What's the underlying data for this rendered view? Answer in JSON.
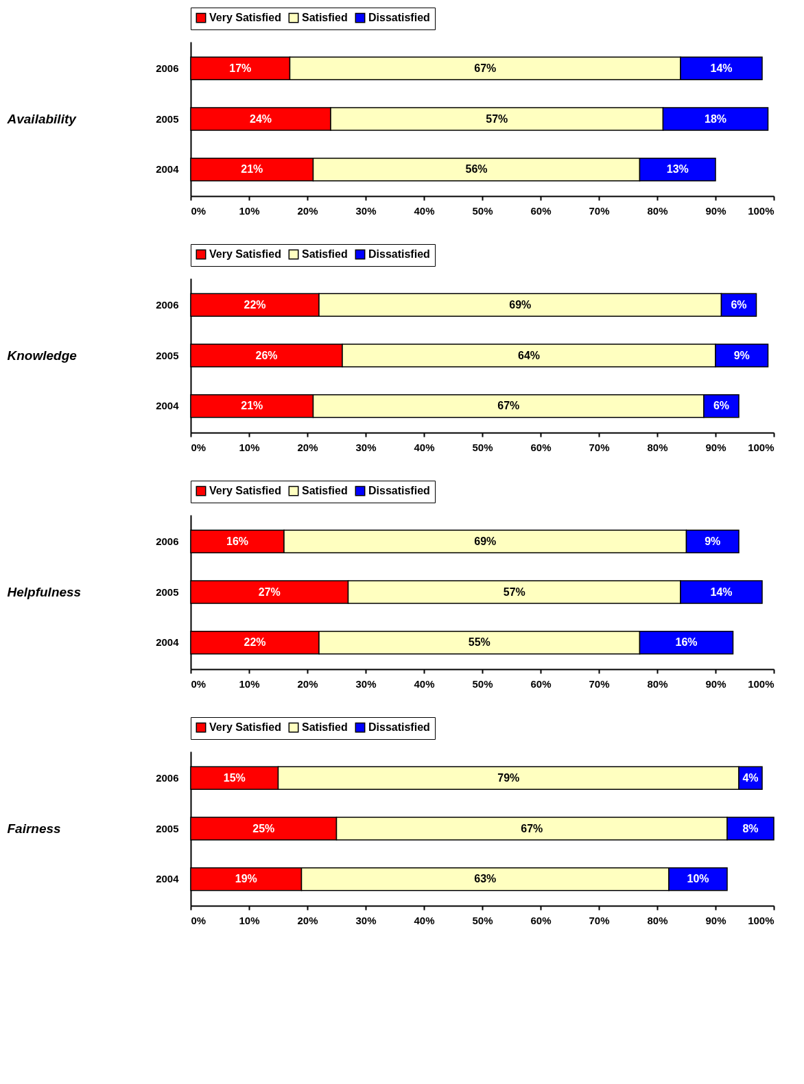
{
  "chart_data": [
    {
      "type": "bar",
      "orientation": "horizontal",
      "stacked": true,
      "ylabel": "Availability",
      "categories": [
        "2006",
        "2005",
        "2004"
      ],
      "legend": "top",
      "grid": false,
      "xlim": [
        0,
        100
      ],
      "xticks": [
        {
          "value": 0,
          "label": "0%"
        },
        {
          "value": 10,
          "label": "10%"
        },
        {
          "value": 20,
          "label": "20%"
        },
        {
          "value": 30,
          "label": "30%"
        },
        {
          "value": 40,
          "label": "40%"
        },
        {
          "value": 50,
          "label": "50%"
        },
        {
          "value": 60,
          "label": "60%"
        },
        {
          "value": 70,
          "label": "70%"
        },
        {
          "value": 80,
          "label": "80%"
        },
        {
          "value": 90,
          "label": "90%"
        },
        {
          "value": 100,
          "label": "100%"
        }
      ],
      "series": [
        {
          "name": "Very Satisfied",
          "color": "#ff0000",
          "values": [
            17,
            24,
            21
          ],
          "value_labels": [
            "17%",
            "24%",
            "21%"
          ]
        },
        {
          "name": "Satisfied",
          "color": "#ffffc0",
          "values": [
            67,
            57,
            56
          ],
          "value_labels": [
            "67%",
            "57%",
            "56%"
          ]
        },
        {
          "name": "Dissatisfied",
          "color": "#0000ff",
          "values": [
            14,
            18,
            13
          ],
          "value_labels": [
            "14%",
            "18%",
            "13%"
          ]
        }
      ]
    },
    {
      "type": "bar",
      "orientation": "horizontal",
      "stacked": true,
      "ylabel": "Knowledge",
      "categories": [
        "2006",
        "2005",
        "2004"
      ],
      "legend": "top",
      "grid": false,
      "xlim": [
        0,
        100
      ],
      "xticks": [
        {
          "value": 0,
          "label": "0%"
        },
        {
          "value": 10,
          "label": "10%"
        },
        {
          "value": 20,
          "label": "20%"
        },
        {
          "value": 30,
          "label": "30%"
        },
        {
          "value": 40,
          "label": "40%"
        },
        {
          "value": 50,
          "label": "50%"
        },
        {
          "value": 60,
          "label": "60%"
        },
        {
          "value": 70,
          "label": "70%"
        },
        {
          "value": 80,
          "label": "80%"
        },
        {
          "value": 90,
          "label": "90%"
        },
        {
          "value": 100,
          "label": "100%"
        }
      ],
      "series": [
        {
          "name": "Very Satisfied",
          "color": "#ff0000",
          "values": [
            22,
            26,
            21
          ],
          "value_labels": [
            "22%",
            "26%",
            "21%"
          ]
        },
        {
          "name": "Satisfied",
          "color": "#ffffc0",
          "values": [
            69,
            64,
            67
          ],
          "value_labels": [
            "69%",
            "64%",
            "67%"
          ]
        },
        {
          "name": "Dissatisfied",
          "color": "#0000ff",
          "values": [
            6,
            9,
            6
          ],
          "value_labels": [
            "6%",
            "9%",
            "6%"
          ]
        }
      ]
    },
    {
      "type": "bar",
      "orientation": "horizontal",
      "stacked": true,
      "ylabel": "Helpfulness",
      "categories": [
        "2006",
        "2005",
        "2004"
      ],
      "legend": "top",
      "grid": false,
      "xlim": [
        0,
        100
      ],
      "xticks": [
        {
          "value": 0,
          "label": "0%"
        },
        {
          "value": 10,
          "label": "10%"
        },
        {
          "value": 20,
          "label": "20%"
        },
        {
          "value": 30,
          "label": "30%"
        },
        {
          "value": 40,
          "label": "40%"
        },
        {
          "value": 50,
          "label": "50%"
        },
        {
          "value": 60,
          "label": "60%"
        },
        {
          "value": 70,
          "label": "70%"
        },
        {
          "value": 80,
          "label": "80%"
        },
        {
          "value": 90,
          "label": "90%"
        },
        {
          "value": 100,
          "label": "100%"
        }
      ],
      "series": [
        {
          "name": "Very Satisfied",
          "color": "#ff0000",
          "values": [
            16,
            27,
            22
          ],
          "value_labels": [
            "16%",
            "27%",
            "22%"
          ]
        },
        {
          "name": "Satisfied",
          "color": "#ffffc0",
          "values": [
            69,
            57,
            55
          ],
          "value_labels": [
            "69%",
            "57%",
            "55%"
          ]
        },
        {
          "name": "Dissatisfied",
          "color": "#0000ff",
          "values": [
            9,
            14,
            16
          ],
          "value_labels": [
            "9%",
            "14%",
            "16%"
          ]
        }
      ]
    },
    {
      "type": "bar",
      "orientation": "horizontal",
      "stacked": true,
      "ylabel": "Fairness",
      "categories": [
        "2006",
        "2005",
        "2004"
      ],
      "legend": "top",
      "grid": false,
      "xlim": [
        0,
        100
      ],
      "xticks": [
        {
          "value": 0,
          "label": "0%"
        },
        {
          "value": 10,
          "label": "10%"
        },
        {
          "value": 20,
          "label": "20%"
        },
        {
          "value": 30,
          "label": "30%"
        },
        {
          "value": 40,
          "label": "40%"
        },
        {
          "value": 50,
          "label": "50%"
        },
        {
          "value": 60,
          "label": "60%"
        },
        {
          "value": 70,
          "label": "70%"
        },
        {
          "value": 80,
          "label": "80%"
        },
        {
          "value": 90,
          "label": "90%"
        },
        {
          "value": 100,
          "label": "100%"
        }
      ],
      "series": [
        {
          "name": "Very Satisfied",
          "color": "#ff0000",
          "values": [
            15,
            25,
            19
          ],
          "value_labels": [
            "15%",
            "25%",
            "19%"
          ]
        },
        {
          "name": "Satisfied",
          "color": "#ffffc0",
          "values": [
            79,
            67,
            63
          ],
          "value_labels": [
            "79%",
            "67%",
            "63%"
          ]
        },
        {
          "name": "Dissatisfied",
          "color": "#0000ff",
          "values": [
            4,
            8,
            10
          ],
          "value_labels": [
            "4%",
            "8%",
            "10%"
          ]
        }
      ]
    }
  ]
}
